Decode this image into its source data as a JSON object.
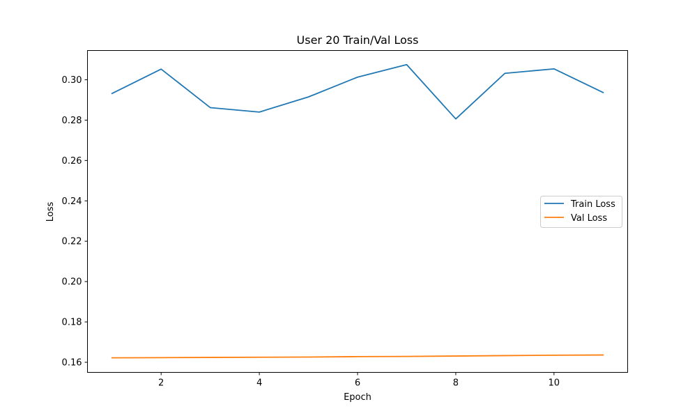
{
  "chart_data": {
    "type": "line",
    "title": "User 20 Train/Val Loss",
    "xlabel": "Epoch",
    "ylabel": "Loss",
    "x": [
      1,
      2,
      3,
      4,
      5,
      6,
      7,
      8,
      9,
      10,
      11
    ],
    "xlim": [
      0.5,
      11.5
    ],
    "ylim": [
      0.155,
      0.3145
    ],
    "xticks": [
      2,
      4,
      6,
      8,
      10
    ],
    "yticks": [
      0.16,
      0.18,
      0.2,
      0.22,
      0.24,
      0.26,
      0.28,
      0.3
    ],
    "ytick_labels": [
      "0.16",
      "0.18",
      "0.20",
      "0.22",
      "0.24",
      "0.26",
      "0.28",
      "0.30"
    ],
    "grid": false,
    "legend_position": "center-right",
    "series": [
      {
        "name": "Train Loss",
        "color": "#1f77b4",
        "values": [
          0.2932,
          0.3053,
          0.2862,
          0.284,
          0.2915,
          0.3013,
          0.3075,
          0.2806,
          0.3032,
          0.3054,
          0.2937
        ]
      },
      {
        "name": "Val Loss",
        "color": "#ff7f0e",
        "values": [
          0.1622,
          0.1623,
          0.1624,
          0.1625,
          0.1626,
          0.1628,
          0.1629,
          0.1631,
          0.1633,
          0.1635,
          0.1636
        ]
      }
    ]
  }
}
